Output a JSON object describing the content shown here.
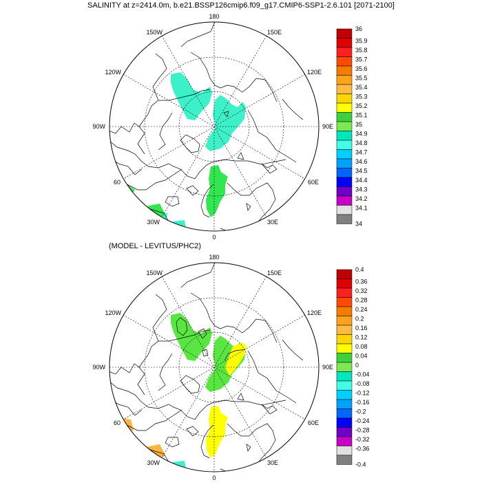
{
  "title": "SALINITY at z=2414.0m, b.e21.BSSP126cmip6.f09_g17.CMIP6-SSP1-2.6.101 [2071-2100]",
  "subtitle": "(MODEL - LEVITUS/PHC2)",
  "longitude_labels": {
    "lon_180": "180",
    "lon_150W": "150W",
    "lon_150E": "150E",
    "lon_120W": "120W",
    "lon_120E": "120E",
    "lon_90W": "90W",
    "lon_90E": "90E",
    "lon_60W": "60",
    "lon_60E": "60E",
    "lon_30W": "30W",
    "lon_30E": "30E",
    "lon_0": "0"
  },
  "colorbar_top": {
    "labels": [
      "36",
      "35.9",
      "35.8",
      "35.7",
      "35.6",
      "35.5",
      "35.4",
      "35.3",
      "35.2",
      "35.1",
      "35",
      "34.9",
      "34.8",
      "34.7",
      "34.6",
      "34.5",
      "34.4",
      "34.3",
      "34.2",
      "34.1",
      "34"
    ],
    "colors": [
      "#c00000",
      "#e00000",
      "#ff2020",
      "#ff4a00",
      "#f47c00",
      "#ffa21e",
      "#ffbb44",
      "#ffd700",
      "#ffff00",
      "#3cd23c",
      "#7ee850",
      "#00e6be",
      "#40ffe6",
      "#00d0ff",
      "#00a2ff",
      "#0066ff",
      "#0000ff",
      "#7000c8",
      "#c800c8",
      "#e0e0e0",
      "#808080"
    ]
  },
  "colorbar_bottom": {
    "labels": [
      "0.4",
      "0.36",
      "0.32",
      "0.28",
      "0.24",
      "0.2",
      "0.16",
      "0.12",
      "0.08",
      "0.04",
      "0",
      "-0.04",
      "-0.08",
      "-0.12",
      "-0.16",
      "-0.2",
      "-0.24",
      "-0.28",
      "-0.32",
      "-0.36",
      "-0.4"
    ],
    "colors": [
      "#c00000",
      "#e00000",
      "#ff2020",
      "#ff4a00",
      "#f47c00",
      "#ffa21e",
      "#ffbb44",
      "#ffd700",
      "#ffff00",
      "#3cd23c",
      "#7ee850",
      "#00e6be",
      "#40ffe6",
      "#00d0ff",
      "#00a2ff",
      "#0066ff",
      "#0000ff",
      "#7000c8",
      "#c800c8",
      "#e0e0e0",
      "#808080"
    ]
  },
  "field_colors": {
    "top_main": "#3cf0c8",
    "top_green": "#32e650",
    "bottom_green": "#5ae640",
    "bottom_yellow": "#ffff00",
    "bottom_orange": "#ffb43c"
  }
}
